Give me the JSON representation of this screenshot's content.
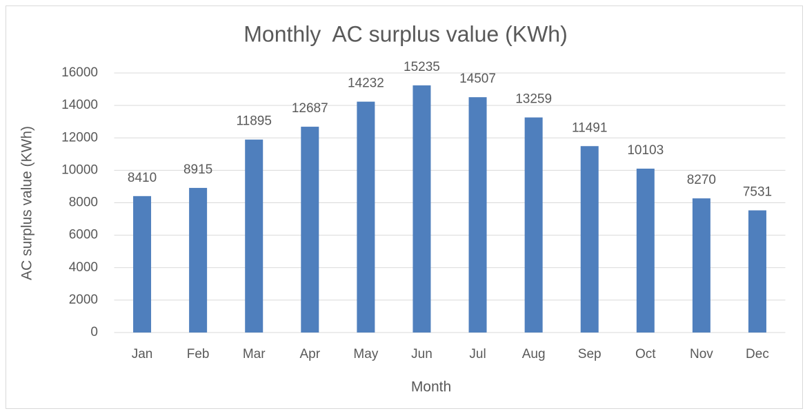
{
  "chart_data": {
    "type": "bar",
    "title": "Monthly  AC surplus value (KWh)",
    "x_label": "Month",
    "y_label": "AC surplus value (KWh)",
    "categories": [
      "Jan",
      "Feb",
      "Mar",
      "Apr",
      "May",
      "Jun",
      "Jul",
      "Aug",
      "Sep",
      "Oct",
      "Nov",
      "Dec"
    ],
    "values": [
      8410,
      8915,
      11895,
      12687,
      14232,
      15235,
      14507,
      13259,
      11491,
      10103,
      8270,
      7531
    ],
    "color": "#4f7fbd",
    "ylim": [
      0,
      16000
    ],
    "yticks": [
      0,
      2000,
      4000,
      6000,
      8000,
      10000,
      12000,
      14000,
      16000
    ],
    "grid": true
  }
}
